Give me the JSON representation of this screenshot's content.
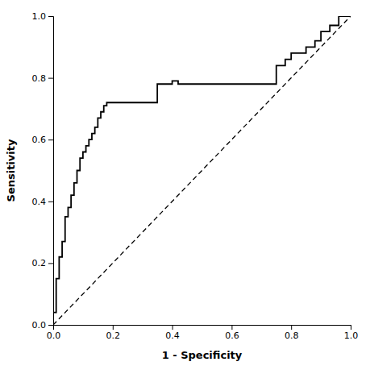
{
  "chart_data": {
    "type": "line",
    "x_label": "1 - Specificity",
    "y_label": "Sensitivity",
    "xlim": [
      0.0,
      1.0
    ],
    "ylim": [
      0.0,
      1.0
    ],
    "xticks": [
      {
        "value": 0.0,
        "label": "0.0"
      },
      0.2,
      0.4,
      0.6,
      0.8,
      {
        "value": 1.0,
        "label": "1.0"
      }
    ],
    "yticks": [
      {
        "value": 0.0,
        "label": "0.0"
      },
      0.2,
      0.4,
      0.6,
      0.8,
      {
        "value": 1.0,
        "label": "1.0"
      }
    ],
    "grid": false,
    "series": [
      {
        "x": [
          0,
          1
        ],
        "values": [
          0,
          1
        ],
        "color": "#000000",
        "line_style": "dashed"
      },
      {
        "x": [
          0.0,
          0.0,
          0.01,
          0.01,
          0.01,
          0.01,
          0.02,
          0.02,
          0.02,
          0.03,
          0.03,
          0.04,
          0.04,
          0.04,
          0.05,
          0.05,
          0.06,
          0.06,
          0.07,
          0.07,
          0.08,
          0.08,
          0.09,
          0.09,
          0.1,
          0.1,
          0.11,
          0.11,
          0.12,
          0.12,
          0.13,
          0.13,
          0.14,
          0.14,
          0.15,
          0.15,
          0.16,
          0.16,
          0.17,
          0.17,
          0.18,
          0.18,
          0.35,
          0.35,
          0.4,
          0.4,
          0.42,
          0.42,
          0.75,
          0.75,
          0.78,
          0.78,
          0.8,
          0.8,
          0.85,
          0.85,
          0.88,
          0.88,
          0.9,
          0.9,
          0.93,
          0.93,
          0.96,
          0.96,
          1.0
        ],
        "values": [
          0.0,
          0.04,
          0.04,
          0.08,
          0.12,
          0.15,
          0.15,
          0.19,
          0.22,
          0.22,
          0.27,
          0.27,
          0.31,
          0.35,
          0.35,
          0.38,
          0.38,
          0.42,
          0.42,
          0.46,
          0.46,
          0.5,
          0.5,
          0.54,
          0.54,
          0.56,
          0.56,
          0.58,
          0.58,
          0.6,
          0.6,
          0.62,
          0.62,
          0.64,
          0.64,
          0.67,
          0.67,
          0.69,
          0.69,
          0.71,
          0.71,
          0.72,
          0.72,
          0.78,
          0.78,
          0.79,
          0.79,
          0.78,
          0.78,
          0.84,
          0.84,
          0.86,
          0.86,
          0.88,
          0.88,
          0.9,
          0.9,
          0.92,
          0.92,
          0.95,
          0.95,
          0.97,
          0.97,
          1.0,
          1.0
        ],
        "color": "#000000",
        "line_style": "solid"
      }
    ]
  }
}
